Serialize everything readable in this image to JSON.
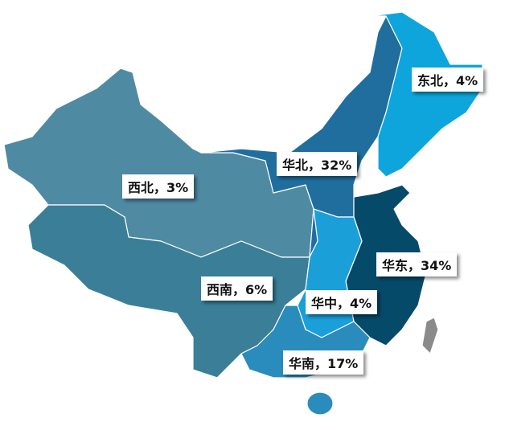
{
  "regions": [
    {
      "label": "东北，4%"
    },
    {
      "label": "华北，32%"
    },
    {
      "label": "西北，3%"
    },
    {
      "label": "华东，34%"
    },
    {
      "label": "西南，6%"
    },
    {
      "label": "华中，4%"
    },
    {
      "label": "华南，17%"
    }
  ]
}
